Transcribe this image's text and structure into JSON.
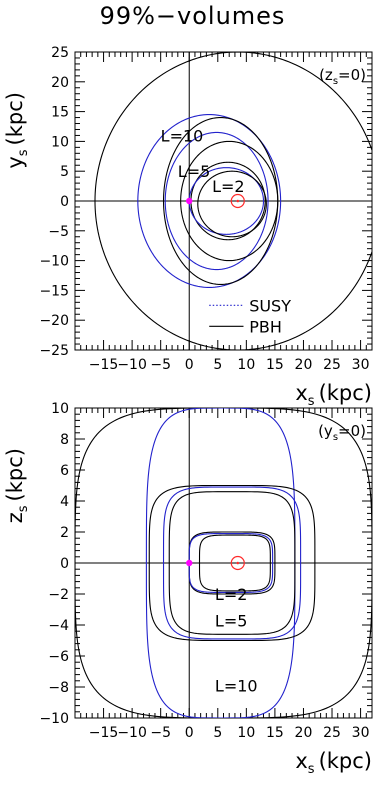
{
  "title": "99%−volumes",
  "colors": {
    "pbh": "#000000",
    "susy": "#2222cc",
    "marker": "#ff00ff",
    "sun": "#ff2a2a"
  },
  "chart_data": [
    {
      "type": "line",
      "panel": "top",
      "xlabel": "xₛ (kpc)",
      "ylabel": "yₛ (kpc)",
      "xlabel_main": "x",
      "xlabel_sub": "s",
      "xlabel_unit": "(kpc)",
      "ylabel_main": "y",
      "ylabel_sub": "s",
      "ylabel_unit": "(kpc)",
      "annotation": "(zₛ=0)",
      "annotation_parts": {
        "open": "(z",
        "sub": "s",
        "close": "=0)"
      },
      "xlim": [
        -20,
        32
      ],
      "ylim": [
        -25,
        25
      ],
      "xticks": [
        -15,
        -10,
        -5,
        0,
        5,
        10,
        15,
        20,
        25,
        30
      ],
      "yticks": [
        -25,
        -20,
        -15,
        -10,
        -5,
        0,
        5,
        10,
        15,
        20,
        25
      ],
      "curve_labels": [
        {
          "text": "L=10",
          "x": -5,
          "y": 10
        },
        {
          "text": "L=5",
          "x": -2,
          "y": 4
        },
        {
          "text": "L=2",
          "x": 4,
          "y": 1.5
        }
      ],
      "legend": [
        {
          "name": "SUSY",
          "style": "dotted"
        },
        {
          "name": "PBH",
          "style": "solid"
        }
      ],
      "series": [
        {
          "name": "PBH",
          "L": 10,
          "center": [
            8.5,
            0
          ],
          "rx": 25,
          "ry": 25,
          "n": 2
        },
        {
          "name": "SUSY",
          "L": 10,
          "center": [
            3.5,
            0
          ],
          "rx": 12.5,
          "ry": 14.5,
          "n": 2
        },
        {
          "name": "PBH",
          "L": 5,
          "center": [
            5.5,
            0
          ],
          "rx": 10,
          "ry": 14,
          "n": 2
        },
        {
          "name": "SUSY",
          "L": 5,
          "center": [
            4.8,
            0
          ],
          "rx": 9,
          "ry": 11.5,
          "n": 2
        },
        {
          "name": "PBH",
          "L": 5,
          "center": [
            7.0,
            0
          ],
          "rx": 8.5,
          "ry": 10,
          "n": 2
        },
        {
          "name": "PBH",
          "L": 2,
          "center": [
            6.8,
            0
          ],
          "rx": 6.5,
          "ry": 6.5,
          "n": 2
        },
        {
          "name": "SUSY",
          "L": 2,
          "center": [
            6.5,
            0
          ],
          "rx": 6.5,
          "ry": 5.6,
          "n": 2
        },
        {
          "name": "PBH",
          "L": 2,
          "center": [
            7.5,
            -0.5
          ],
          "rx": 6.0,
          "ry": 5.5,
          "n": 2
        }
      ],
      "markers": [
        {
          "kind": "galactic-center",
          "x": 0,
          "y": 0
        },
        {
          "kind": "sun",
          "x": 8.5,
          "y": 0
        }
      ]
    },
    {
      "type": "line",
      "panel": "bottom",
      "xlabel": "xₛ (kpc)",
      "ylabel": "zₛ (kpc)",
      "xlabel_main": "x",
      "xlabel_sub": "s",
      "xlabel_unit": "(kpc)",
      "ylabel_main": "z",
      "ylabel_sub": "s",
      "ylabel_unit": "(kpc)",
      "annotation": "(yₛ=0)",
      "annotation_parts": {
        "open": "(y",
        "sub": "s",
        "close": "=0)"
      },
      "xlim": [
        -20,
        32
      ],
      "ylim": [
        -10,
        10
      ],
      "xticks": [
        -15,
        -10,
        -5,
        0,
        5,
        10,
        15,
        20,
        25,
        30
      ],
      "yticks": [
        -10,
        -8,
        -6,
        -4,
        -2,
        0,
        2,
        4,
        6,
        8,
        10
      ],
      "curve_labels": [
        {
          "text": "L=2",
          "x": 4.5,
          "y": -2.4
        },
        {
          "text": "L=5",
          "x": 4.5,
          "y": -4.1
        },
        {
          "text": "L=10",
          "x": 4.5,
          "y": -8.3
        }
      ],
      "series": [
        {
          "name": "PBH",
          "L": 10,
          "center": [
            6,
            0
          ],
          "rx": 26,
          "ry": 10,
          "n": 4
        },
        {
          "name": "SUSY",
          "L": 10,
          "center": [
            5.5,
            0
          ],
          "rx": 13,
          "ry": 10,
          "n": 4
        },
        {
          "name": "PBH",
          "L": 5,
          "center": [
            7.5,
            0
          ],
          "rx": 14.5,
          "ry": 5,
          "n": 5
        },
        {
          "name": "SUSY",
          "L": 5,
          "center": [
            7.5,
            0
          ],
          "rx": 12,
          "ry": 4.9,
          "n": 5
        },
        {
          "name": "PBH",
          "L": 5,
          "center": [
            7.5,
            0
          ],
          "rx": 11,
          "ry": 4.6,
          "n": 5
        },
        {
          "name": "PBH",
          "L": 2,
          "center": [
            7.5,
            0
          ],
          "rx": 7.5,
          "ry": 2.0,
          "n": 5
        },
        {
          "name": "SUSY",
          "L": 2,
          "center": [
            7.3,
            0
          ],
          "rx": 7.3,
          "ry": 1.9,
          "n": 5
        },
        {
          "name": "PBH",
          "L": 2,
          "center": [
            8.0,
            0
          ],
          "rx": 6.2,
          "ry": 1.8,
          "n": 5
        }
      ],
      "markers": [
        {
          "kind": "galactic-center",
          "x": 0,
          "y": 0
        },
        {
          "kind": "sun",
          "x": 8.5,
          "y": 0
        }
      ]
    }
  ]
}
